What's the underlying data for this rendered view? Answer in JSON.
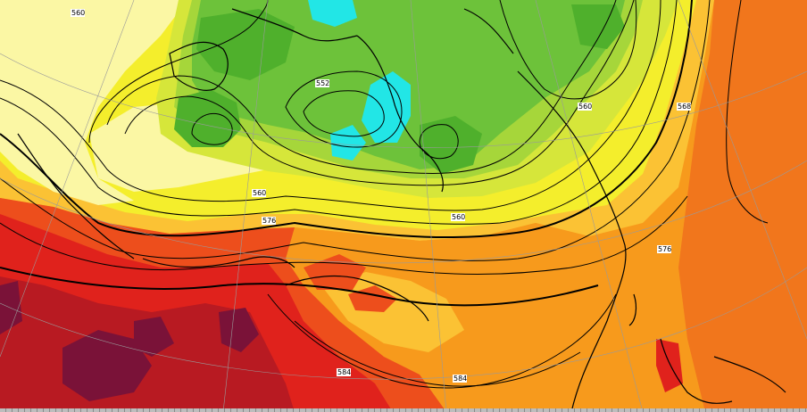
{
  "map": {
    "kind": "500 hPa geopotential height / temperature analysis",
    "palette": {
      "cyan": "#22e6e6",
      "green_dark": "#4fb02c",
      "green": "#6dc23a",
      "green_light": "#a6d63a",
      "yellow_green": "#d6e63a",
      "yellow": "#f4ee2c",
      "pale_yellow": "#fbf7a4",
      "light_orange": "#fbc234",
      "orange": "#f79a1c",
      "dark_orange": "#f1761c",
      "red_orange": "#ed4e1c",
      "red": "#e0221c",
      "dark_red": "#b81a22",
      "maroon": "#7a1238"
    },
    "contour_labels": [
      "560",
      "552",
      "560",
      "560",
      "560",
      "576",
      "568",
      "584",
      "576",
      "584"
    ]
  }
}
